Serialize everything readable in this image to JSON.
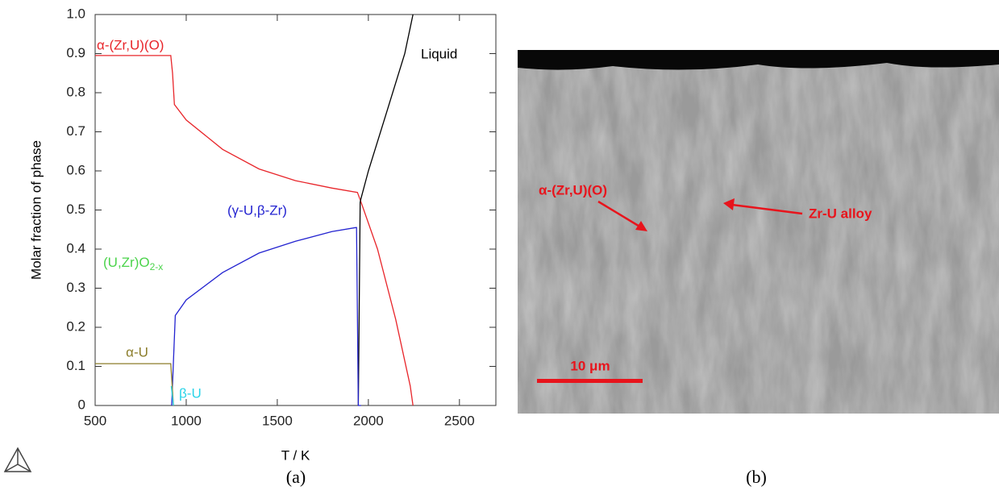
{
  "chart_data": {
    "type": "line",
    "xlabel": "T / K",
    "ylabel": "Molar fraction of phase",
    "caption": "(a)",
    "xlim": [
      500,
      2700
    ],
    "xticks": [
      500,
      1000,
      1500,
      2000,
      2500
    ],
    "ylim": [
      0,
      1
    ],
    "yticks": [
      0,
      0.1,
      0.2,
      0.3,
      0.4,
      0.5,
      0.6,
      0.7,
      0.8,
      0.9,
      {
        "value": 1,
        "label": "1.0"
      }
    ],
    "series": [
      {
        "name": "α-(Zr,U)(O)",
        "color": "#e8252a",
        "x": [
          500,
          915,
          925,
          935,
          1000,
          1200,
          1400,
          1600,
          1800,
          1940,
          1960,
          2050,
          2150,
          2230,
          2245
        ],
        "values": [
          0.895,
          0.895,
          0.85,
          0.77,
          0.73,
          0.655,
          0.605,
          0.575,
          0.556,
          0.545,
          0.52,
          0.4,
          0.22,
          0.05,
          0
        ]
      },
      {
        "name": "Liquid",
        "color": "#000000",
        "x": [
          1945,
          1955,
          1960,
          2000,
          2100,
          2200,
          2245
        ],
        "values": [
          0,
          0.52,
          0.53,
          0.6,
          0.75,
          0.9,
          1.0
        ]
      },
      {
        "name": "(γ-U,β-Zr)",
        "color": "#2323d0",
        "x": [
          920,
          940,
          1000,
          1200,
          1400,
          1600,
          1800,
          1930,
          1935,
          1945,
          1960
        ],
        "values": [
          0,
          0.23,
          0.27,
          0.34,
          0.39,
          0.42,
          0.445,
          0.455,
          0.455,
          0,
          0
        ]
      },
      {
        "name": "α-U",
        "color": "#8b7d2a",
        "x": [
          500,
          915,
          930
        ],
        "values": [
          0.107,
          0.107,
          0
        ]
      },
      {
        "name": "β-U",
        "color": "#2ad4e8",
        "x": [
          918,
          930
        ],
        "values": [
          0.05,
          0
        ]
      }
    ],
    "annotation": {
      "text": "(U,Zr)O",
      "sub": "2-x",
      "color": "#4bd34b"
    }
  },
  "figure_b": {
    "caption": "(b)",
    "labels": [
      "α-(Zr,U)(O)",
      "Zr-U alloy"
    ],
    "scale_bar": "10 μm"
  }
}
